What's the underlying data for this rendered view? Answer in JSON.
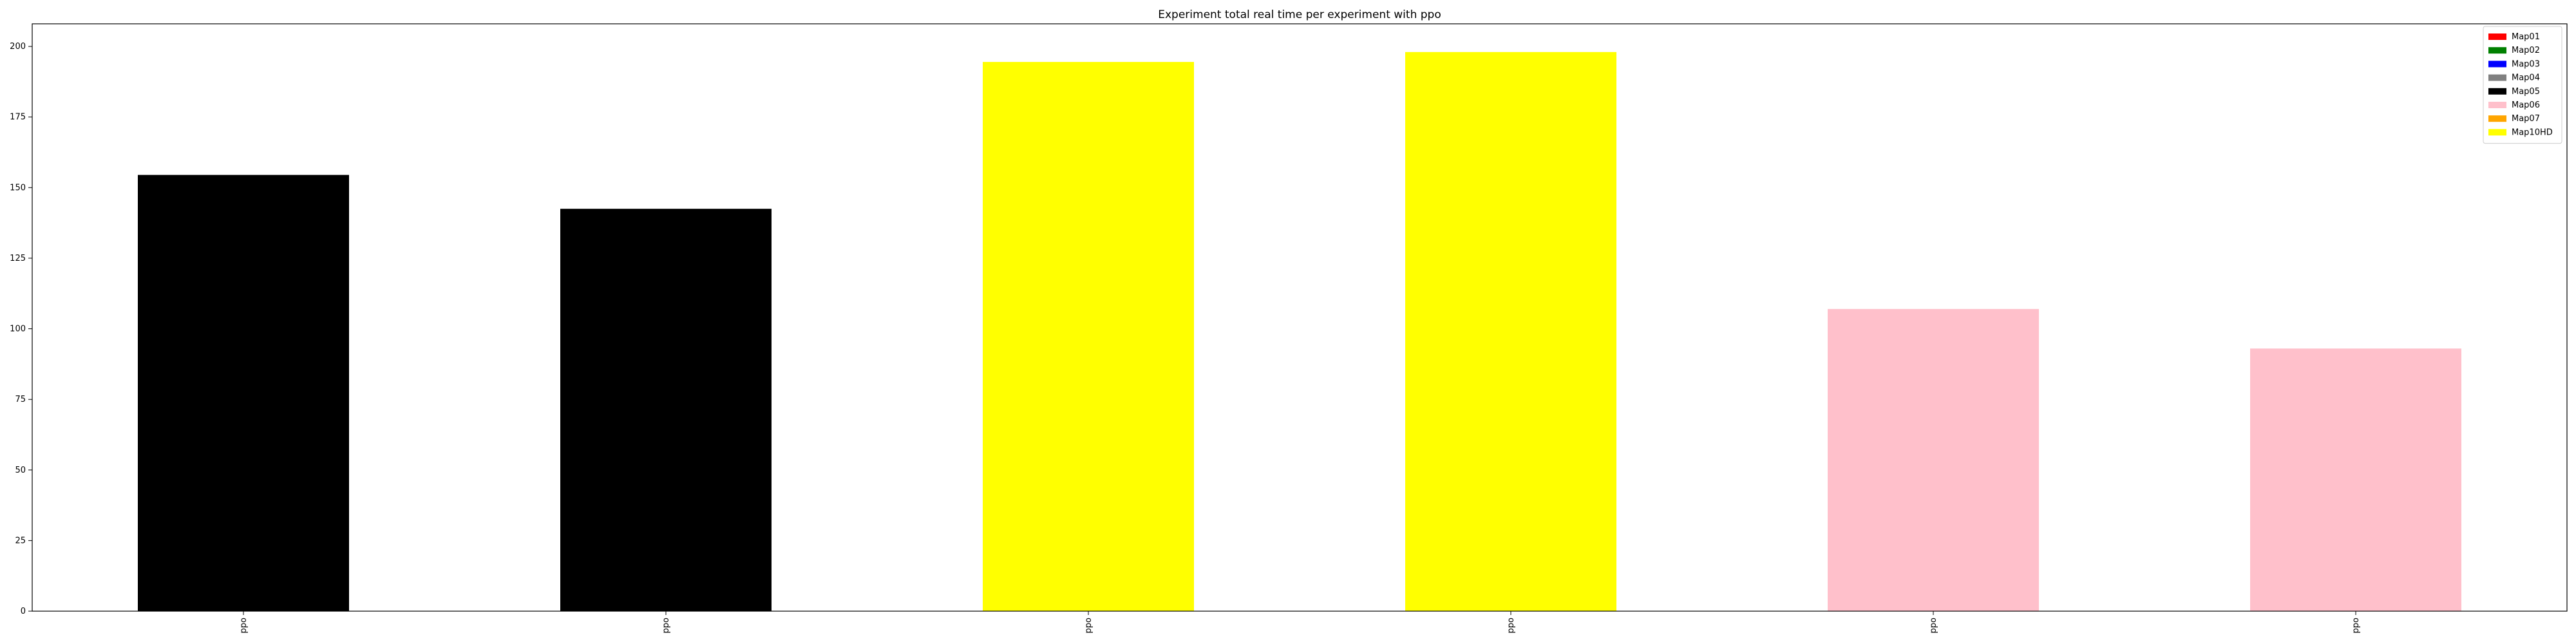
{
  "chart_data": {
    "type": "bar",
    "title": "Experiment total real time per experiment with ppo",
    "xlabel": "",
    "ylabel": "",
    "categories": [
      "ppo",
      "ppo",
      "ppo",
      "ppo",
      "ppo",
      "ppo"
    ],
    "values": [
      154.5,
      142.5,
      194.5,
      198.0,
      107.0,
      93.0
    ],
    "bar_maps": [
      "Map05",
      "Map05",
      "Map10HD",
      "Map10HD",
      "Map06",
      "Map06"
    ],
    "ylim": [
      0,
      208
    ],
    "yticks": [
      0,
      25,
      50,
      75,
      100,
      125,
      150,
      175,
      200
    ],
    "grid": false,
    "legend_position": "top-right",
    "legend": [
      {
        "label": "Map01",
        "color": "#ff0000"
      },
      {
        "label": "Map02",
        "color": "#008000"
      },
      {
        "label": "Map03",
        "color": "#0000ff"
      },
      {
        "label": "Map04",
        "color": "#808080"
      },
      {
        "label": "Map05",
        "color": "#000000"
      },
      {
        "label": "Map06",
        "color": "#ffc0cb"
      },
      {
        "label": "Map07",
        "color": "#ffa500"
      },
      {
        "label": "Map10HD",
        "color": "#ffff00"
      }
    ]
  }
}
